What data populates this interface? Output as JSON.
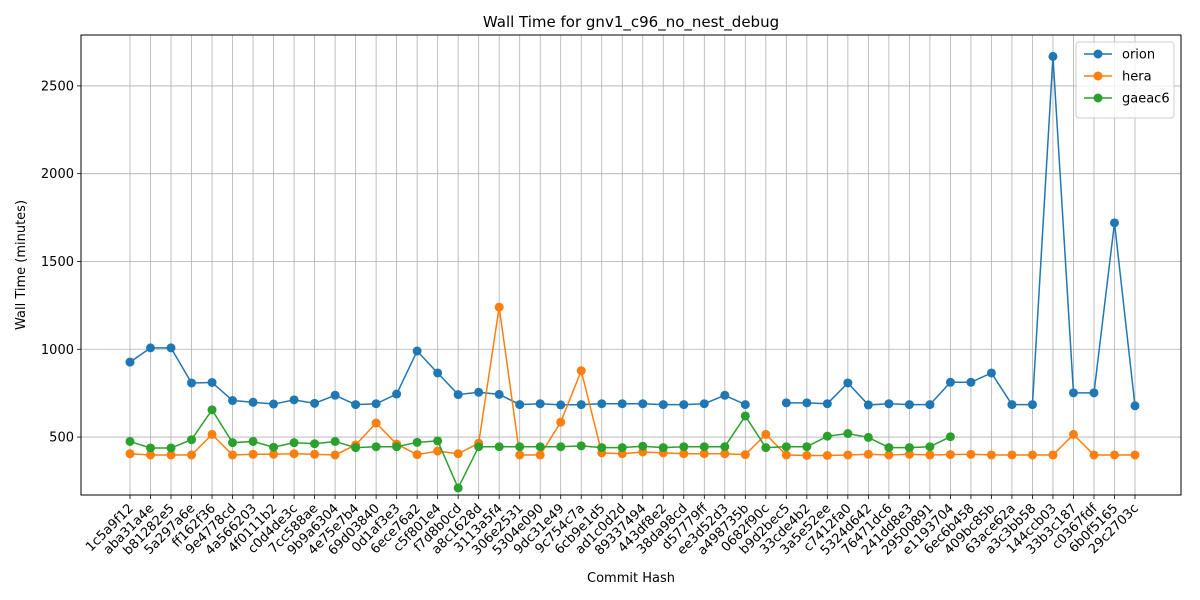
{
  "chart_data": {
    "type": "line",
    "title": "Wall Time for gnv1_c96_no_nest_debug",
    "xlabel": "Commit Hash",
    "ylabel": "Wall Time (minutes)",
    "ylim": [
      170,
      2790
    ],
    "yticks": [
      500,
      1000,
      1500,
      2000,
      2500
    ],
    "grid": true,
    "legend_position": "top-right",
    "categories": [
      "1c5a9f12",
      "aba31a4e",
      "b81282e5",
      "5a297a6e",
      "ff162f36",
      "9e4778cd",
      "4a566203",
      "4f0111b2",
      "c0d4de3c",
      "7cc588ae",
      "9b9a6304",
      "4e75e7b4",
      "69d03840",
      "0d1af3e3",
      "6ece76a2",
      "c5f801e4",
      "f7d8b0cd",
      "a8c1628d",
      "3113a5f4",
      "306e2531",
      "5304e090",
      "9dc31e49",
      "9c754c7a",
      "6cb9e1d5",
      "ad1c0d2d",
      "89337494",
      "443df8e2",
      "38da98cd",
      "d57779ff",
      "ee3d52d3",
      "a498735b",
      "0682f90c",
      "b9d2bec5",
      "33cde4b2",
      "3a5e52ee",
      "c7412fa0",
      "5324d642",
      "76471dc6",
      "241dd8e3",
      "29500891",
      "e1193704",
      "6ec6b458",
      "409bc85b",
      "63ace62a",
      "a3c3bb58",
      "144ccb03",
      "33b3c187",
      "c0367fdf",
      "6b0f5165",
      "29c2703c"
    ],
    "series": [
      {
        "name": "orion",
        "color": "#1f77b4",
        "values": [
          927,
          1008,
          1008,
          808,
          811,
          708,
          698,
          688,
          712,
          692,
          738,
          685,
          690,
          745,
          990,
          865,
          742,
          755,
          743,
          685,
          690,
          683,
          685,
          690,
          690,
          690,
          685,
          685,
          690,
          738,
          685,
          null,
          695,
          695,
          690,
          808,
          683,
          690,
          685,
          685,
          812,
          812,
          865,
          685,
          685,
          2668,
          752,
          752,
          1720,
          678
        ]
      },
      {
        "name": "hera",
        "color": "#ff7f0e",
        "values": [
          405,
          398,
          398,
          398,
          515,
          398,
          402,
          402,
          405,
          402,
          398,
          455,
          580,
          460,
          400,
          420,
          405,
          465,
          1240,
          398,
          398,
          585,
          878,
          410,
          405,
          415,
          410,
          405,
          405,
          405,
          400,
          515,
          398,
          395,
          395,
          398,
          402,
          398,
          402,
          398,
          400,
          402,
          398,
          398,
          398,
          398,
          515,
          398,
          398,
          398
        ]
      },
      {
        "name": "gaeac6",
        "color": "#2ca02c",
        "values": [
          475,
          438,
          438,
          485,
          655,
          468,
          475,
          442,
          468,
          462,
          475,
          440,
          445,
          445,
          470,
          478,
          210,
          445,
          445,
          445,
          445,
          445,
          450,
          440,
          440,
          448,
          440,
          445,
          445,
          445,
          620,
          440,
          445,
          445,
          505,
          520,
          498,
          440,
          440,
          445,
          502,
          null,
          null,
          null,
          null,
          null,
          null,
          null,
          null,
          null
        ]
      }
    ]
  }
}
